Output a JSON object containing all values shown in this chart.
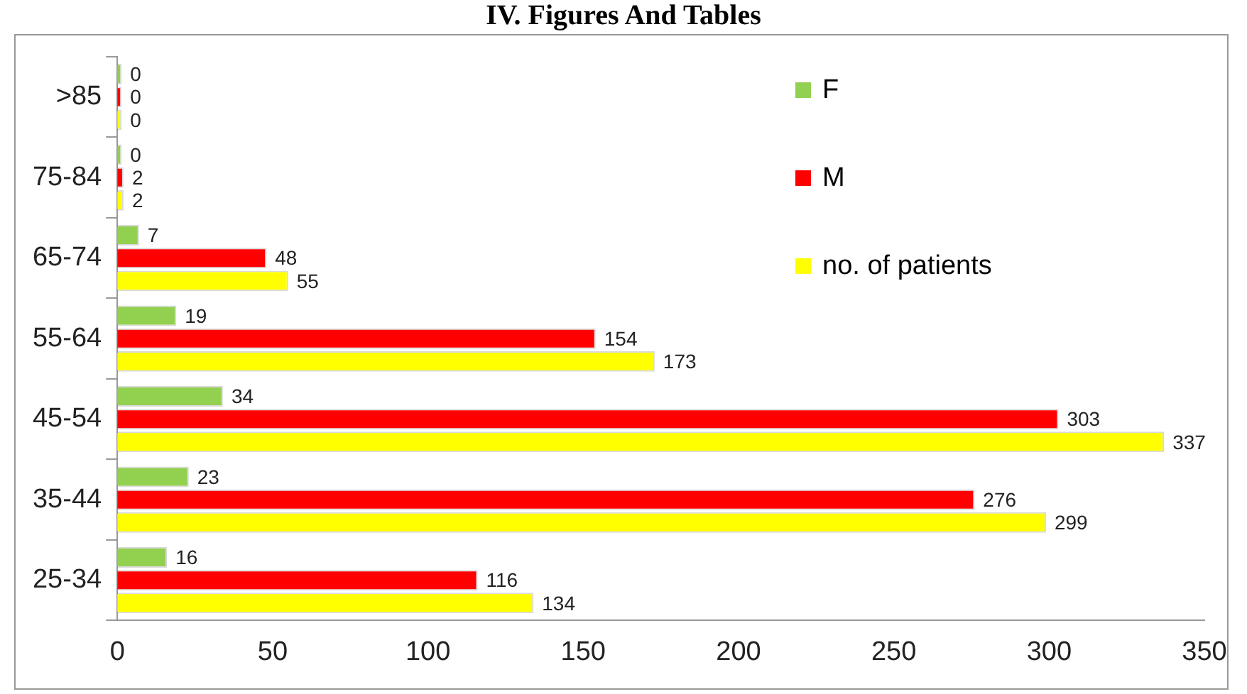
{
  "chart_data": {
    "type": "bar",
    "orientation": "horizontal",
    "title": "IV. Figures And Tables",
    "categories": [
      ">85",
      "75-84",
      "65-74",
      "55-64",
      "45-54",
      "35-44",
      "25-34"
    ],
    "series": [
      {
        "name": "F",
        "color": "#92d050",
        "values": [
          0,
          0,
          7,
          19,
          34,
          23,
          16
        ]
      },
      {
        "name": "M",
        "color": "#ff0000",
        "values": [
          0,
          2,
          48,
          154,
          303,
          276,
          116
        ]
      },
      {
        "name": "no. of patients",
        "color": "#ffff00",
        "values": [
          0,
          2,
          55,
          173,
          337,
          299,
          134
        ]
      }
    ],
    "xlim": [
      0,
      350
    ],
    "xticks": [
      0,
      50,
      100,
      150,
      200,
      250,
      300,
      350
    ],
    "grid": false,
    "legend": "top right",
    "data_labels": true
  }
}
